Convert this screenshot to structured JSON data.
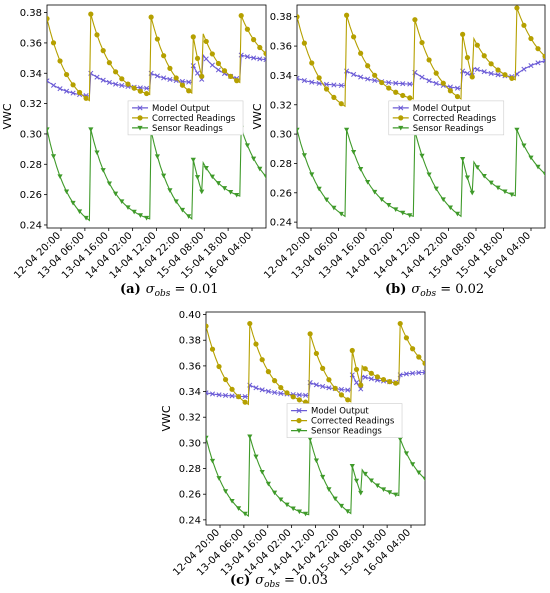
{
  "series_styles": {
    "model": {
      "color": "#6b5bd6",
      "marker": "x"
    },
    "corrected": {
      "color": "#b5a000",
      "marker": "o"
    },
    "sensor": {
      "color": "#3f9a2a",
      "marker": "v"
    }
  },
  "chart_data": [
    {
      "type": "line",
      "caption": "(a) σ_obs = 0.01",
      "ylabel": "VWC",
      "ylim": [
        0.238,
        0.385
      ],
      "yticks": [
        "0.24",
        "0.26",
        "0.28",
        "0.30",
        "0.32",
        "0.34",
        "0.36",
        "0.38"
      ],
      "xticks": [
        "12-04 20:00",
        "13-04 06:00",
        "13-04 16:00",
        "14-04 02:00",
        "14-04 12:00",
        "14-04 22:00",
        "15-04 08:00",
        "15-04 18:00",
        "16-04 04:00"
      ],
      "legend": {
        "placement": "center-right",
        "entries": [
          "Model Output",
          "Corrected Readings",
          "Sensor Readings"
        ]
      },
      "events": [
        {
          "t": 0.0,
          "model": 0.335,
          "corrected": 0.376,
          "sensor": 0.303
        },
        {
          "t": 10.6,
          "model": 0.34,
          "corrected": 0.379,
          "sensor": 0.303
        },
        {
          "t": 25.2,
          "model": 0.34,
          "corrected": 0.377,
          "sensor": 0.302
        },
        {
          "t": 35.4,
          "model": 0.345,
          "corrected": 0.364,
          "sensor": 0.283
        },
        {
          "t": 37.8,
          "model": 0.352,
          "corrected": 0.366,
          "sensor": 0.281
        },
        {
          "t": 47.0,
          "model": 0.352,
          "corrected": 0.378,
          "sensor": 0.304
        }
      ],
      "ends": {
        "model": [
          0.325,
          0.33,
          0.334,
          0.336,
          0.336,
          0.349
        ],
        "corrected": [
          0.322,
          0.326,
          0.327,
          0.338,
          0.334,
          0.353
        ],
        "sensor": [
          0.243,
          0.244,
          0.244,
          0.262,
          0.259,
          0.272
        ]
      }
    },
    {
      "type": "line",
      "caption": "(b) σ_obs = 0.02",
      "ylabel": "VWC",
      "ylim": [
        0.236,
        0.388
      ],
      "yticks": [
        "0.24",
        "0.26",
        "0.28",
        "0.30",
        "0.32",
        "0.34",
        "0.36",
        "0.38"
      ],
      "xticks": [
        "12-04 20:00",
        "13-04 06:00",
        "13-04 16:00",
        "14-04 02:00",
        "14-04 12:00",
        "14-04 22:00",
        "15-04 08:00",
        "15-04 18:00",
        "16-04 04:00"
      ],
      "legend": {
        "placement": "center-right",
        "entries": [
          "Model Output",
          "Corrected Readings",
          "Sensor Readings"
        ]
      },
      "events": [
        {
          "t": 0.0,
          "model": 0.338,
          "corrected": 0.38,
          "sensor": 0.303
        },
        {
          "t": 10.6,
          "model": 0.343,
          "corrected": 0.381,
          "sensor": 0.303
        },
        {
          "t": 25.2,
          "model": 0.342,
          "corrected": 0.378,
          "sensor": 0.302
        },
        {
          "t": 35.4,
          "model": 0.343,
          "corrected": 0.368,
          "sensor": 0.283
        },
        {
          "t": 37.8,
          "model": 0.345,
          "corrected": 0.365,
          "sensor": 0.281
        },
        {
          "t": 47.0,
          "model": 0.341,
          "corrected": 0.386,
          "sensor": 0.303
        }
      ],
      "ends": {
        "model": [
          0.333,
          0.334,
          0.331,
          0.34,
          0.339,
          0.35
        ],
        "corrected": [
          0.319,
          0.324,
          0.324,
          0.339,
          0.337,
          0.353
        ],
        "sensor": [
          0.244,
          0.244,
          0.244,
          0.26,
          0.258,
          0.273
        ]
      }
    },
    {
      "type": "line",
      "caption": "(c) σ_obs = 0.03",
      "ylabel": "VWC",
      "ylim": [
        0.236,
        0.402
      ],
      "yticks": [
        "0.24",
        "0.26",
        "0.28",
        "0.30",
        "0.32",
        "0.34",
        "0.36",
        "0.38",
        "0.40"
      ],
      "xticks": [
        "12-04 20:00",
        "13-04 06:00",
        "13-04 16:00",
        "14-04 02:00",
        "14-04 12:00",
        "14-04 22:00",
        "15-04 08:00",
        "15-04 18:00",
        "16-04 04:00"
      ],
      "legend": {
        "placement": "center-right",
        "entries": [
          "Model Output",
          "Corrected Readings",
          "Sensor Readings"
        ]
      },
      "events": [
        {
          "t": 0.0,
          "model": 0.339,
          "corrected": 0.391,
          "sensor": 0.304
        },
        {
          "t": 10.6,
          "model": 0.345,
          "corrected": 0.393,
          "sensor": 0.305
        },
        {
          "t": 25.2,
          "model": 0.347,
          "corrected": 0.385,
          "sensor": 0.303
        },
        {
          "t": 35.4,
          "model": 0.353,
          "corrected": 0.372,
          "sensor": 0.282
        },
        {
          "t": 37.8,
          "model": 0.352,
          "corrected": 0.36,
          "sensor": 0.279
        },
        {
          "t": 47.0,
          "model": 0.353,
          "corrected": 0.393,
          "sensor": 0.303
        }
      ],
      "ends": {
        "model": [
          0.336,
          0.337,
          0.341,
          0.342,
          0.347,
          0.355
        ],
        "corrected": [
          0.33,
          0.331,
          0.332,
          0.345,
          0.346,
          0.362
        ],
        "sensor": [
          0.243,
          0.244,
          0.245,
          0.261,
          0.259,
          0.272
        ]
      }
    }
  ]
}
